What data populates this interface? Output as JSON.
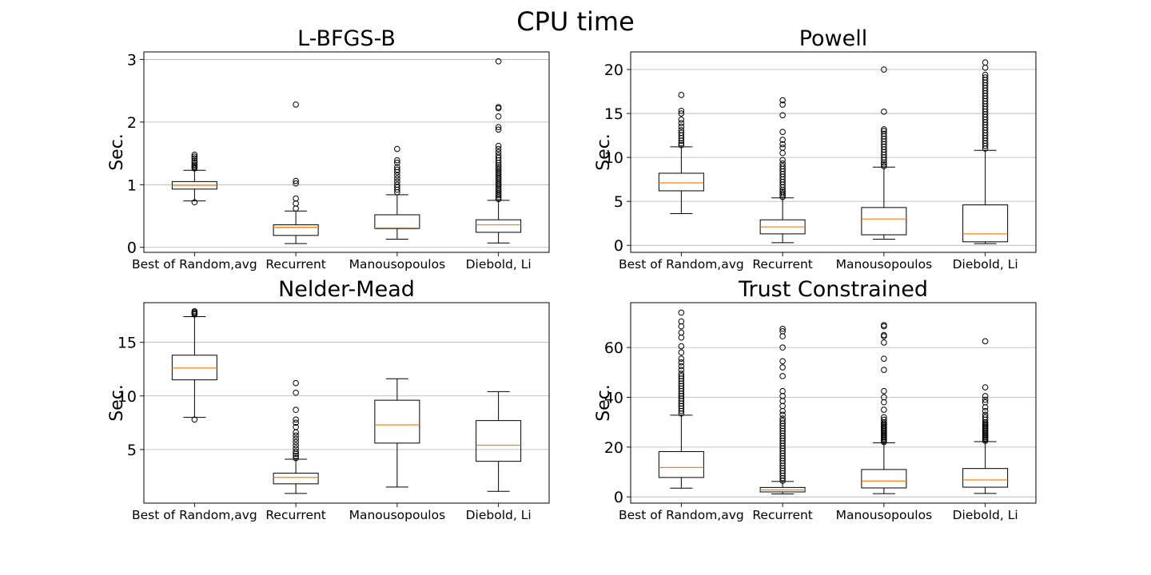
{
  "figure_title": "CPU time",
  "colors": {
    "median": "#ff7f0e",
    "box": "#000000",
    "grid": "#b0b0b0",
    "background": "#ffffff"
  },
  "chart_data": [
    {
      "type": "boxplot",
      "title": "L-BFGS-B",
      "xlabel": "",
      "ylabel": "Sec.",
      "categories": [
        "Best of Random,avg",
        "Recurrent",
        "Manousopoulos",
        "Diebold, Li"
      ],
      "ylim": [
        -0.08,
        3.12
      ],
      "yticks": [
        0,
        1,
        2,
        3
      ],
      "grid": "y",
      "boxes": [
        {
          "whislo": 0.74,
          "q1": 0.93,
          "med": 0.99,
          "q3": 1.05,
          "whishi": 1.23,
          "fliers": [
            0.72,
            1.26,
            1.28,
            1.3,
            1.32,
            1.35,
            1.38,
            1.42,
            1.45,
            1.48
          ]
        },
        {
          "whislo": 0.06,
          "q1": 0.19,
          "med": 0.32,
          "q3": 0.36,
          "whishi": 0.58,
          "fliers": [
            0.62,
            0.7,
            0.78,
            1.02,
            1.06,
            2.28
          ]
        },
        {
          "whislo": 0.13,
          "q1": 0.3,
          "med": 0.31,
          "q3": 0.52,
          "whishi": 0.84,
          "fliers": [
            0.88,
            0.92,
            0.96,
            1.0,
            1.05,
            1.1,
            1.15,
            1.2,
            1.24,
            1.28,
            1.35,
            1.39,
            1.57
          ]
        },
        {
          "whislo": 0.07,
          "q1": 0.24,
          "med": 0.36,
          "q3": 0.44,
          "whishi": 0.75,
          "fliers": [
            0.77,
            0.8,
            0.83,
            0.86,
            0.89,
            0.92,
            0.95,
            0.98,
            1.01,
            1.04,
            1.07,
            1.1,
            1.13,
            1.16,
            1.19,
            1.22,
            1.25,
            1.28,
            1.31,
            1.35,
            1.39,
            1.43,
            1.47,
            1.52,
            1.57,
            1.62,
            1.88,
            1.92,
            2.09,
            2.22,
            2.24,
            2.97
          ]
        }
      ]
    },
    {
      "type": "boxplot",
      "title": "Powell",
      "xlabel": "",
      "ylabel": "Sec.",
      "categories": [
        "Best of Random,avg",
        "Recurrent",
        "Manousopoulos",
        "Diebold, Li"
      ],
      "ylim": [
        -0.8,
        22.0
      ],
      "yticks": [
        0,
        5,
        10,
        15,
        20
      ],
      "grid": "y",
      "boxes": [
        {
          "whislo": 3.6,
          "q1": 6.2,
          "med": 7.1,
          "q3": 8.2,
          "whishi": 11.2,
          "fliers": [
            11.4,
            11.6,
            11.9,
            12.2,
            12.5,
            12.8,
            13.1,
            13.5,
            13.9,
            14.3,
            15.0,
            15.3,
            17.1
          ]
        },
        {
          "whislo": 0.3,
          "q1": 1.3,
          "med": 2.1,
          "q3": 2.9,
          "whishi": 5.4,
          "fliers": [
            5.5,
            5.7,
            5.9,
            6.1,
            6.3,
            6.6,
            6.9,
            7.2,
            7.5,
            7.8,
            8.1,
            8.4,
            8.7,
            9.0,
            9.3,
            9.7,
            10.5,
            11.1,
            11.5,
            12.0,
            12.9,
            14.8,
            16.0,
            16.5
          ]
        },
        {
          "whislo": 0.7,
          "q1": 1.2,
          "med": 3.0,
          "q3": 4.3,
          "whishi": 8.9,
          "fliers": [
            9.0,
            9.2,
            9.4,
            9.7,
            10.0,
            10.3,
            10.6,
            10.9,
            11.2,
            11.5,
            11.8,
            12.1,
            12.4,
            12.7,
            13.0,
            13.2,
            15.2,
            20.0
          ]
        },
        {
          "whislo": 0.2,
          "q1": 0.4,
          "med": 1.3,
          "q3": 4.6,
          "whishi": 10.8,
          "fliers": [
            11.0,
            11.3,
            11.6,
            11.9,
            12.2,
            12.5,
            12.8,
            13.1,
            13.4,
            13.7,
            14.0,
            14.3,
            14.6,
            14.9,
            15.2,
            15.5,
            15.8,
            16.1,
            16.4,
            16.7,
            17.0,
            17.3,
            17.6,
            17.9,
            18.2,
            18.5,
            18.8,
            19.1,
            19.4,
            20.2,
            20.8
          ]
        }
      ]
    },
    {
      "type": "boxplot",
      "title": "Nelder-Mead",
      "xlabel": "",
      "ylabel": "Sec.",
      "categories": [
        "Best of Random,avg",
        "Recurrent",
        "Manousopoulos",
        "Diebold, Li"
      ],
      "ylim": [
        0.0,
        18.7
      ],
      "yticks": [
        5,
        10,
        15
      ],
      "grid": "y",
      "boxes": [
        {
          "whislo": 8.0,
          "q1": 11.5,
          "med": 12.6,
          "q3": 13.8,
          "whishi": 17.4,
          "fliers": [
            7.8,
            17.6,
            17.7,
            17.8,
            17.9
          ]
        },
        {
          "whislo": 0.9,
          "q1": 1.8,
          "med": 2.4,
          "q3": 2.8,
          "whishi": 4.1,
          "fliers": [
            4.2,
            4.4,
            4.6,
            4.8,
            5.1,
            5.4,
            5.7,
            6.0,
            6.3,
            6.6,
            7.1,
            7.5,
            7.8,
            8.7,
            10.3,
            11.2
          ]
        },
        {
          "whislo": 1.5,
          "q1": 5.6,
          "med": 7.3,
          "q3": 9.6,
          "whishi": 11.6,
          "fliers": []
        },
        {
          "whislo": 1.1,
          "q1": 3.9,
          "med": 5.4,
          "q3": 7.7,
          "whishi": 10.4,
          "fliers": []
        }
      ]
    },
    {
      "type": "boxplot",
      "title": "Trust Constrained",
      "xlabel": "",
      "ylabel": "Sec.",
      "categories": [
        "Best of Random,avg",
        "Recurrent",
        "Manousopoulos",
        "Diebold, Li"
      ],
      "ylim": [
        -2.5,
        78.0
      ],
      "yticks": [
        0,
        20,
        40,
        60
      ],
      "grid": "y",
      "boxes": [
        {
          "whislo": 3.5,
          "q1": 7.8,
          "med": 11.8,
          "q3": 18.2,
          "whishi": 32.8,
          "fliers": [
            33.5,
            34.5,
            35.5,
            36.5,
            37.5,
            38.5,
            39.5,
            40.5,
            41.5,
            42.5,
            43.5,
            44.5,
            45.5,
            46.5,
            47.5,
            48.5,
            49.5,
            51.0,
            52.5,
            54.0,
            55.5,
            58.0,
            60.5,
            64.0,
            66.0,
            68.5,
            70.5,
            74.0
          ]
        },
        {
          "whislo": 1.2,
          "q1": 2.0,
          "med": 2.8,
          "q3": 3.8,
          "whishi": 6.2,
          "fliers": [
            6.5,
            7.5,
            8.5,
            9.5,
            10.5,
            11.5,
            12.5,
            13.5,
            14.5,
            15.5,
            16.5,
            17.5,
            18.5,
            19.5,
            20.5,
            21.5,
            22.5,
            23.5,
            24.5,
            25.5,
            26.5,
            27.5,
            28.5,
            29.5,
            30.5,
            31.5,
            33.0,
            34.5,
            36.5,
            38.5,
            40.5,
            42.5,
            48.5,
            52.0,
            54.5,
            60.0,
            64.5,
            66.5,
            67.5
          ]
        },
        {
          "whislo": 1.3,
          "q1": 3.6,
          "med": 6.4,
          "q3": 11.0,
          "whishi": 21.7,
          "fliers": [
            22.0,
            22.5,
            23.0,
            23.5,
            24.0,
            24.5,
            25.0,
            25.5,
            26.0,
            26.5,
            27.0,
            27.5,
            28.0,
            28.5,
            29.0,
            29.5,
            30.0,
            31.0,
            32.0,
            35.0,
            38.0,
            40.0,
            42.5,
            51.0,
            55.5,
            62.0,
            64.5,
            65.0,
            68.5,
            69.0
          ]
        },
        {
          "whislo": 1.4,
          "q1": 3.9,
          "med": 6.8,
          "q3": 11.4,
          "whishi": 22.2,
          "fliers": [
            22.5,
            23.0,
            23.5,
            24.0,
            24.5,
            25.0,
            25.5,
            26.0,
            26.5,
            27.0,
            27.5,
            28.0,
            28.5,
            29.0,
            29.5,
            30.0,
            31.0,
            32.0,
            33.0,
            34.5,
            36.0,
            38.0,
            39.0,
            40.5,
            44.0,
            62.5
          ]
        }
      ]
    }
  ]
}
